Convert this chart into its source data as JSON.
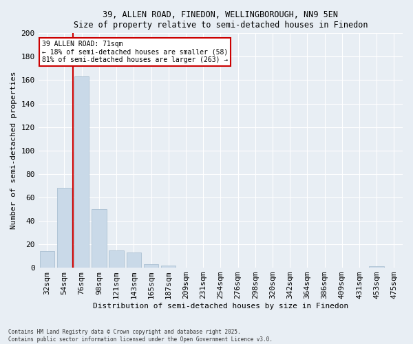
{
  "title1": "39, ALLEN ROAD, FINEDON, WELLINGBOROUGH, NN9 5EN",
  "title2": "Size of property relative to semi-detached houses in Finedon",
  "xlabel": "Distribution of semi-detached houses by size in Finedon",
  "ylabel": "Number of semi-detached properties",
  "categories": [
    "32sqm",
    "54sqm",
    "76sqm",
    "98sqm",
    "121sqm",
    "143sqm",
    "165sqm",
    "187sqm",
    "209sqm",
    "231sqm",
    "254sqm",
    "276sqm",
    "298sqm",
    "320sqm",
    "342sqm",
    "364sqm",
    "386sqm",
    "409sqm",
    "431sqm",
    "453sqm",
    "475sqm"
  ],
  "values": [
    14,
    68,
    163,
    50,
    15,
    13,
    3,
    2,
    0,
    0,
    0,
    0,
    0,
    0,
    0,
    0,
    0,
    0,
    0,
    1,
    0
  ],
  "bar_color": "#c9d9e8",
  "bar_edge_color": "#a0b8cc",
  "annotation_title": "39 ALLEN ROAD: 71sqm",
  "annotation_line1": "← 18% of semi-detached houses are smaller (58)",
  "annotation_line2": "81% of semi-detached houses are larger (263) →",
  "annotation_box_color": "#ffffff",
  "annotation_box_edge_color": "#cc0000",
  "property_line_color": "#cc0000",
  "background_color": "#e8eef4",
  "footer": "Contains HM Land Registry data © Crown copyright and database right 2025.\nContains public sector information licensed under the Open Government Licence v3.0.",
  "ylim": [
    0,
    200
  ],
  "yticks": [
    0,
    20,
    40,
    60,
    80,
    100,
    120,
    140,
    160,
    180,
    200
  ]
}
